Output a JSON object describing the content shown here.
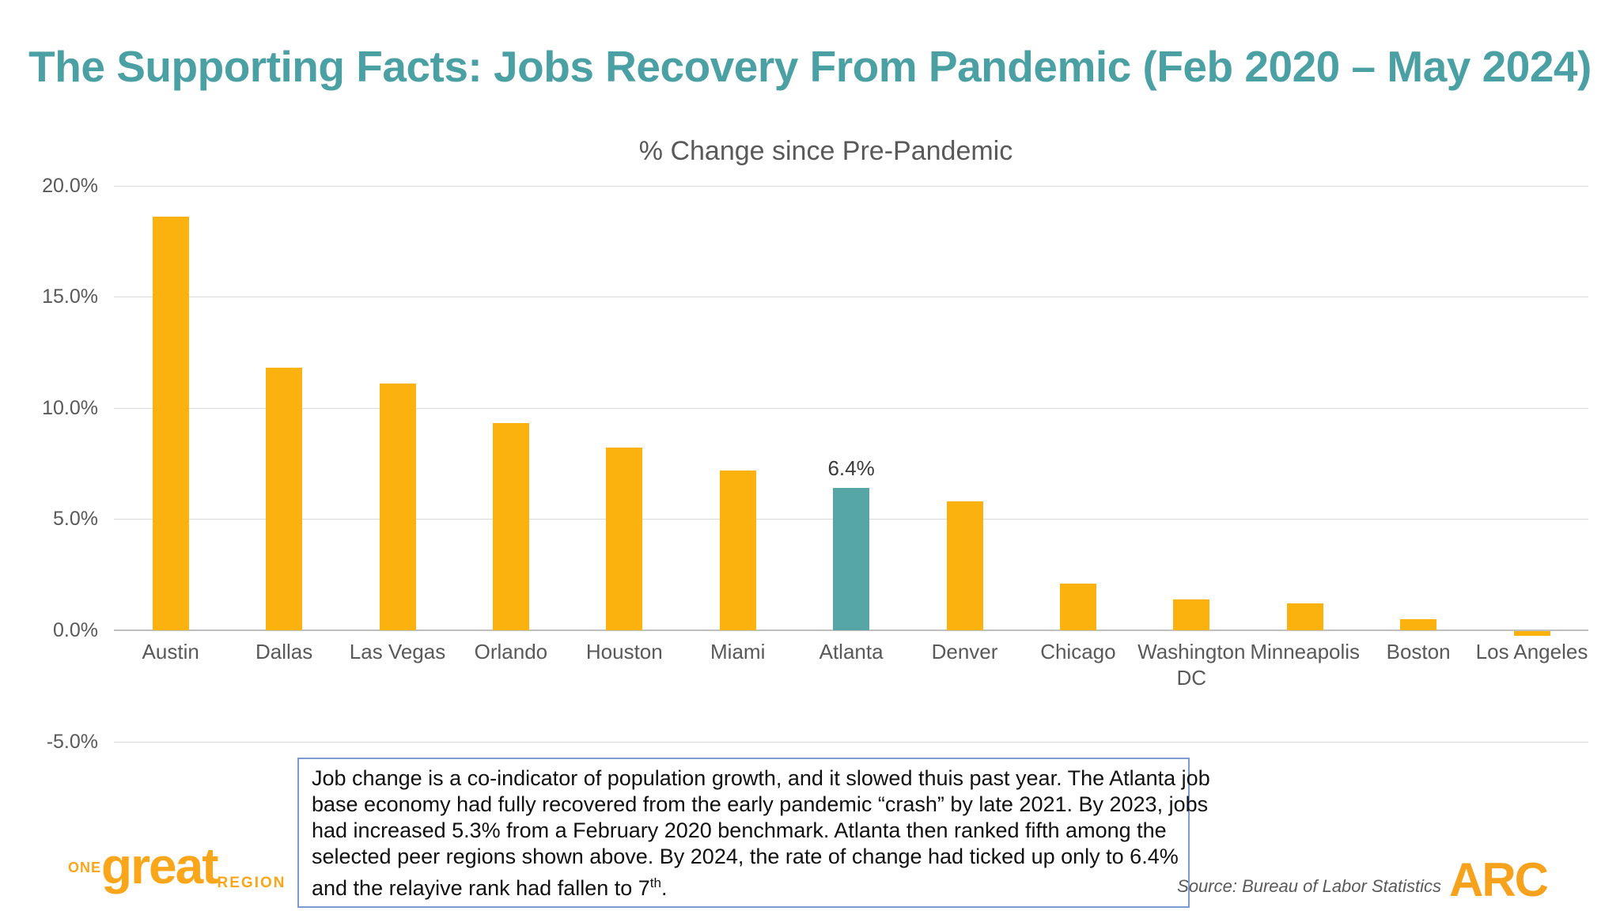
{
  "header": {
    "title": "The Supporting Facts: Jobs Recovery From Pandemic (Feb 2020 – May 2024)"
  },
  "chart_data": {
    "type": "bar",
    "title": "% Change since Pre-Pandemic",
    "categories": [
      "Austin",
      "Dallas",
      "Las Vegas",
      "Orlando",
      "Houston",
      "Miami",
      "Atlanta",
      "Denver",
      "Chicago",
      "Washington DC",
      "Minneapolis",
      "Boston",
      "Los Angeles"
    ],
    "values": [
      18.6,
      11.8,
      11.1,
      9.3,
      8.2,
      7.2,
      6.4,
      5.8,
      2.1,
      1.4,
      1.2,
      0.5,
      -0.2
    ],
    "highlight": {
      "category": "Atlanta",
      "label": "6.4%"
    },
    "y_ticks": [
      {
        "label": "20.0%",
        "value": 20
      },
      {
        "label": "15.0%",
        "value": 15
      },
      {
        "label": "10.0%",
        "value": 10
      },
      {
        "label": "5.0%",
        "value": 5
      },
      {
        "label": "0.0%",
        "value": 0
      },
      {
        "label": "-5.0%",
        "value": -5
      }
    ],
    "ylim": [
      -5,
      20
    ],
    "xlabel": "",
    "ylabel": "",
    "grid": true,
    "legend_position": "none",
    "bar_color": "#FBB10E",
    "highlight_color": "#57A6A6"
  },
  "note": {
    "lines": [
      "Job change is a co-indicator of population growth, and it slowed thuis past year. The Atlanta job",
      "base economy had fully recovered from the early pandemic “crash” by late 2021. By 2023, jobs",
      "had increased 5.3% from a February 2020 benchmark. Atlanta then ranked fifth among the",
      "selected peer regions shown above. By 2024, the rate of change had ticked up only to 6.4%"
    ],
    "last_line_prefix": "and the relayive rank had fallen to 7",
    "last_line_sup": "th",
    "last_line_suffix": "."
  },
  "footer": {
    "logo": {
      "one": "ONE",
      "great": "great",
      "region": "REGION"
    },
    "source": "Source: Bureau of Labor Statistics",
    "arc": "ARC"
  },
  "colors": {
    "title_teal": "#4BA0A3",
    "bar_amber": "#FBB10E",
    "bar_teal": "#57A6A6",
    "axis_text": "#595959",
    "gridline": "#D9D9D9",
    "note_border": "#7B9BD2",
    "logo_amber": "#F9A61A",
    "arc_amber": "#F6A21D"
  }
}
